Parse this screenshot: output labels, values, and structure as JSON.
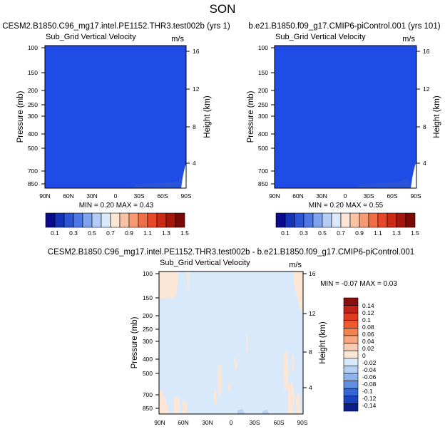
{
  "figure_title": "SON",
  "colors": {
    "field_blue": "#1f4ce6",
    "diff_background": "#d7e9fb",
    "diff_positive_patch": "#fbe6d6",
    "frame": "#000000"
  },
  "chart_data": [
    {
      "type": "heatmap",
      "panel": "top-left",
      "title": "CESM2.B1850.C96_mg17.intel.PE1152.THR3.test002b (yrs 1)",
      "subtitle_left": "Sub_Grid Vertical Velocity",
      "subtitle_right": "m/s",
      "ylabel": "Pressure (mb)",
      "ylabel_right": "Height (km)",
      "x_ticks": [
        "90N",
        "60N",
        "30N",
        "0",
        "30S",
        "60S",
        "90S"
      ],
      "y_ticks": [
        "100",
        "150",
        "200",
        "250",
        "300",
        "400",
        "500",
        "700",
        "850"
      ],
      "y_ticks_right": [
        "16",
        "12",
        "8",
        "4"
      ],
      "min_max_text": "MIN =  0.20   MAX =   0.43",
      "colorbar_labels": [
        "0.1",
        "0.3",
        "0.5",
        "0.7",
        "0.9",
        "1.1",
        "1.3",
        "1.5"
      ]
    },
    {
      "type": "heatmap",
      "panel": "top-right",
      "title": "b.e21.B1850.f09_g17.CMIP6-piControl.001 (yrs 101)",
      "subtitle_left": "Sub_Grid Vertical Velocity",
      "subtitle_right": "m/s",
      "ylabel": "Pressure (mb)",
      "ylabel_right": "Height (km)",
      "x_ticks": [
        "90N",
        "60N",
        "30N",
        "0",
        "30S",
        "60S",
        "90S"
      ],
      "y_ticks": [
        "100",
        "150",
        "200",
        "250",
        "300",
        "400",
        "500",
        "700",
        "850"
      ],
      "y_ticks_right": [
        "16",
        "12",
        "8",
        "4"
      ],
      "min_max_text": "MIN =  0.20   MAX =   0.55",
      "colorbar_labels": [
        "0.1",
        "0.3",
        "0.5",
        "0.7",
        "0.9",
        "1.1",
        "1.3",
        "1.5"
      ]
    },
    {
      "type": "heatmap",
      "panel": "bottom-difference",
      "title": "CESM2.B1850.C96_mg17.intel.PE1152.THR3.test002b - b.e21.B1850.f09_g17.CMIP6-piControl.001",
      "subtitle_left": "Sub_Grid Vertical Velocity",
      "subtitle_right": "m/s",
      "ylabel": "Pressure (mb)",
      "ylabel_right": "Height (km)",
      "x_ticks": [
        "90N",
        "60N",
        "30N",
        "0",
        "30S",
        "60S",
        "90S"
      ],
      "y_ticks": [
        "100",
        "150",
        "200",
        "250",
        "300",
        "400",
        "500",
        "700",
        "850"
      ],
      "y_ticks_right": [
        "16",
        "12",
        "8",
        "4"
      ],
      "min_max_text": "MIN =  -0.07   MAX =   0.03",
      "colorbar_labels": [
        "0.14",
        "0.12",
        "0.1",
        "0.08",
        "0.06",
        "0.04",
        "0.02",
        "0",
        "-0.02",
        "-0.04",
        "-0.06",
        "-0.08",
        "-0.1",
        "-0.12",
        "-0.14"
      ]
    }
  ],
  "colorbars": {
    "field": [
      "#0a0a8c",
      "#1533b8",
      "#2b55d6",
      "#4d79e6",
      "#7ea4ee",
      "#b4cdf5",
      "#dbe8fa",
      "#fbe6d6",
      "#f8c2a3",
      "#f59a73",
      "#f06e46",
      "#e8472a",
      "#cc2a14",
      "#a6160a",
      "#7a0a04"
    ],
    "diff": [
      "#8a0f0f",
      "#c2241b",
      "#e03a1f",
      "#ee5a2c",
      "#f3804f",
      "#f6a77f",
      "#f9cbb0",
      "#fbe6d6",
      "#d7e9fb",
      "#b5d1f4",
      "#8db4ec",
      "#5f8fe2",
      "#3566d6",
      "#1a43c2",
      "#0a1f8c"
    ]
  }
}
